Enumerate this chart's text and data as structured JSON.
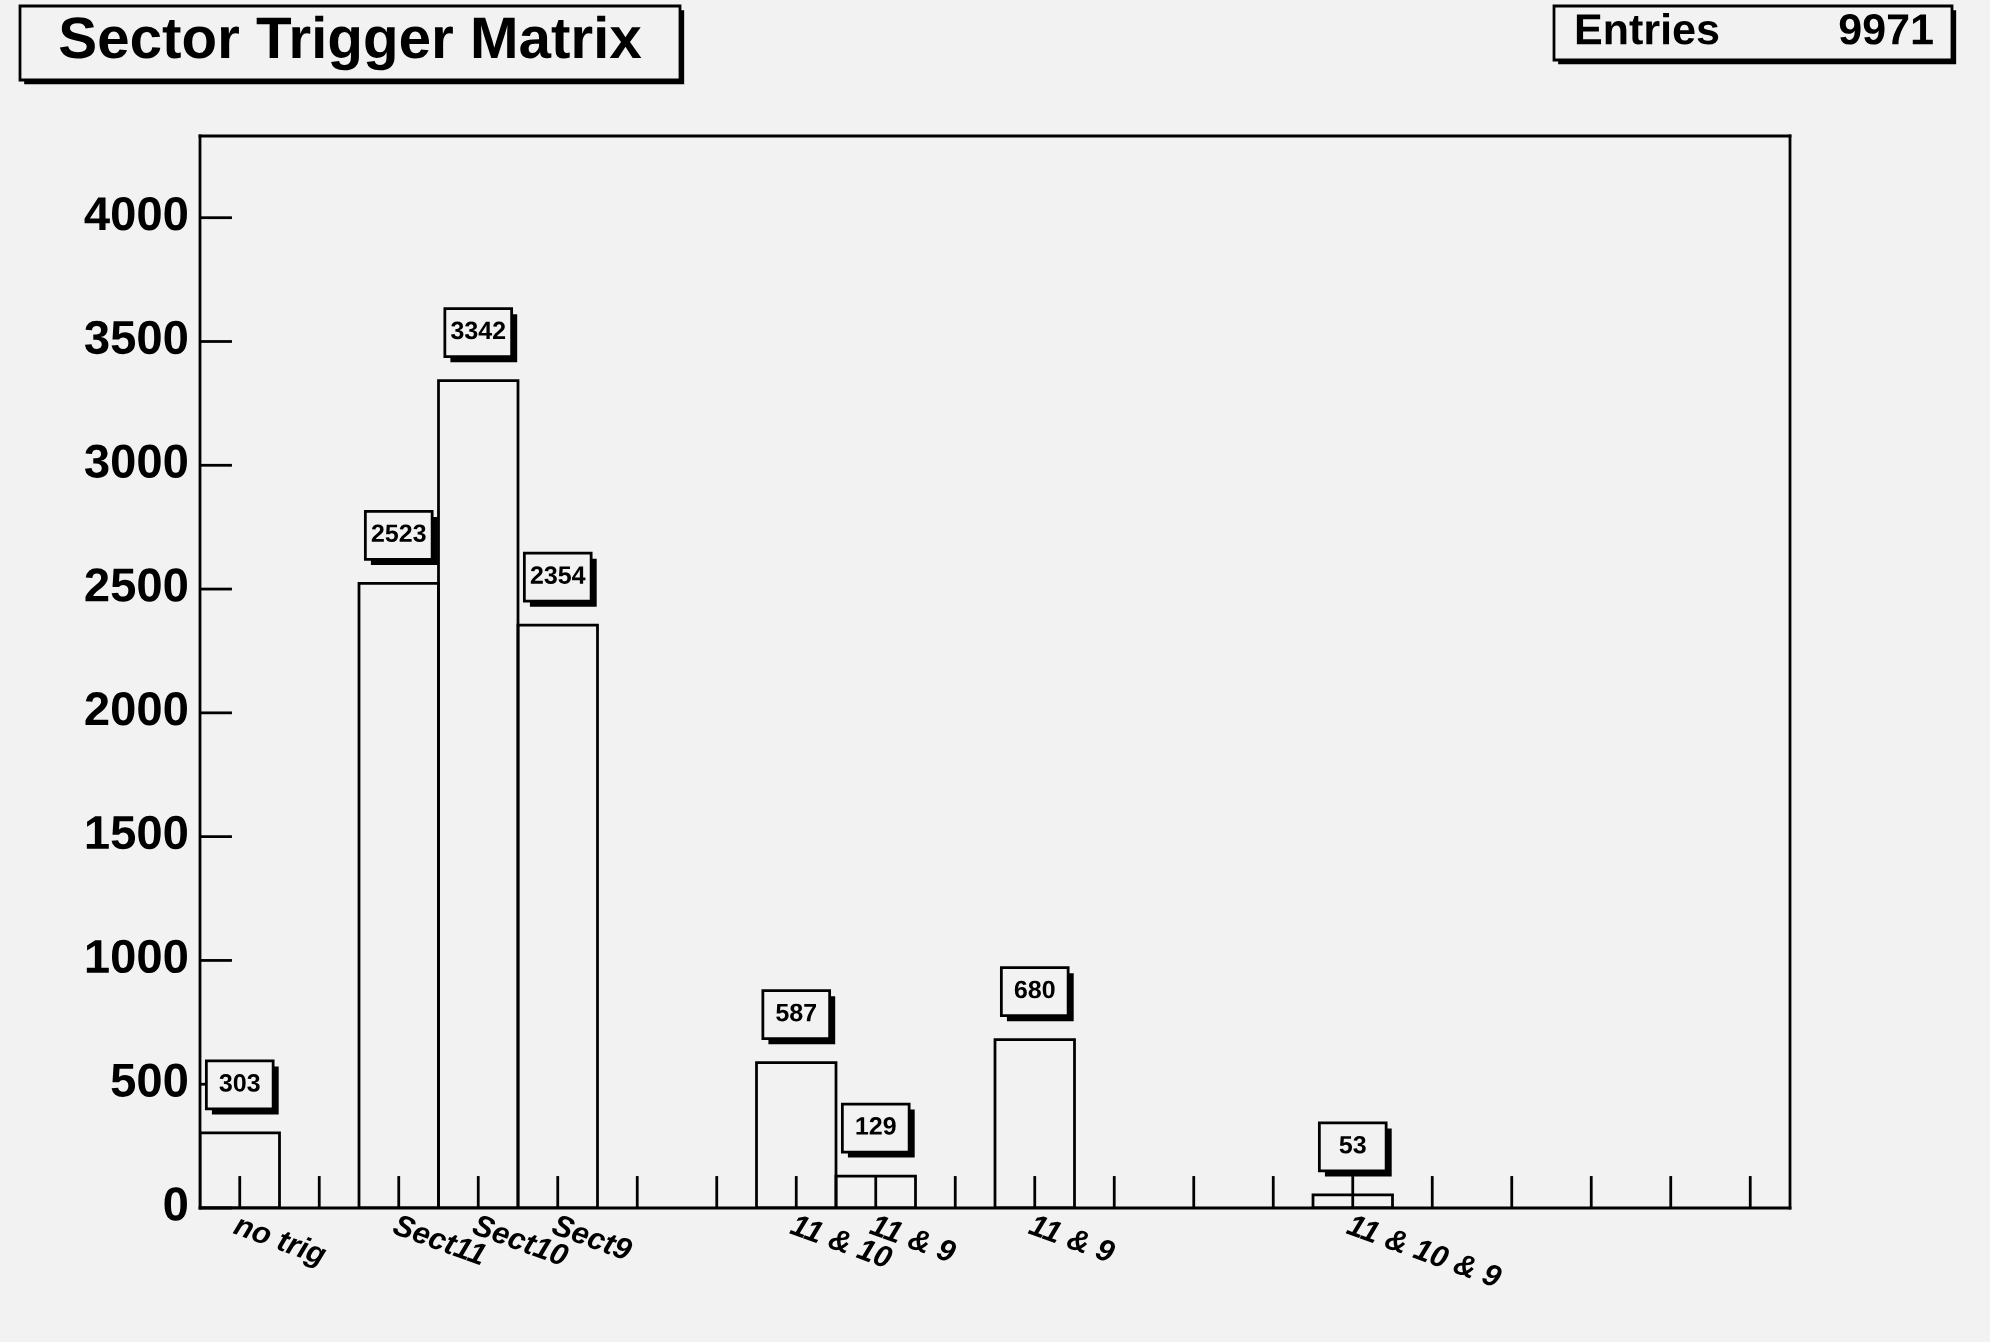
{
  "chart_data": {
    "type": "bar",
    "title": "Sector Trigger Matrix",
    "categories": [
      "no trig",
      null,
      "Sect11",
      "Sect10",
      "Sect9",
      null,
      null,
      "11 & 10",
      "11 & 9",
      null,
      "11 & 9",
      null,
      null,
      null,
      "11 & 10 & 9",
      null,
      null,
      null,
      null,
      null
    ],
    "values": [
      303,
      0,
      2523,
      3342,
      2354,
      0,
      0,
      587,
      129,
      0,
      680,
      0,
      0,
      0,
      53,
      0,
      0,
      0,
      0,
      0
    ],
    "value_labels": [
      "303",
      null,
      "2523",
      "3342",
      "2354",
      null,
      null,
      "587",
      "129",
      null,
      "680",
      null,
      null,
      null,
      "53",
      null,
      null,
      null,
      null,
      null
    ],
    "color": "#000000",
    "ylim": [
      0,
      4330
    ],
    "yticks": [
      0,
      500,
      1000,
      1500,
      2000,
      2500,
      3000,
      3500,
      4000
    ],
    "annotations": [
      "Entries",
      "9971"
    ]
  }
}
